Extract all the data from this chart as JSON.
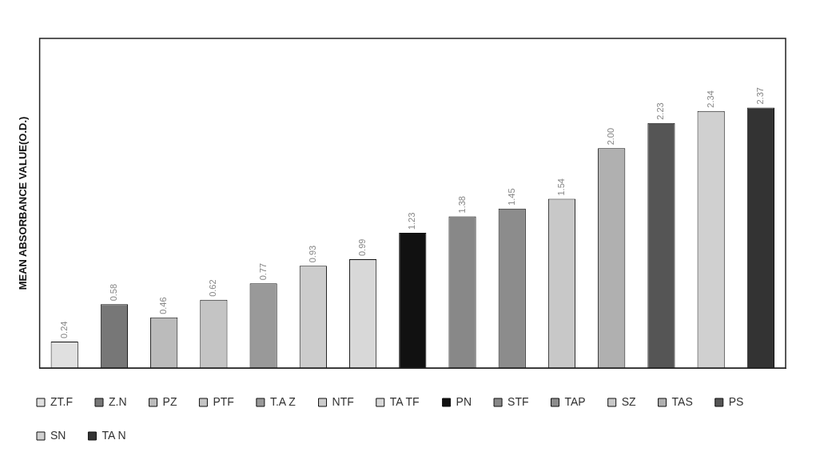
{
  "chart_data": {
    "type": "bar",
    "ylabel": "MEAN ABSORBANCE VALUE(O.D.)",
    "categories": [
      null,
      null,
      null,
      null,
      null,
      null,
      null,
      null,
      null,
      null,
      null,
      null,
      null,
      null,
      null
    ],
    "series": [
      {
        "name": "ZT.F",
        "color": "#e0e0e0",
        "values": [
          0.24,
          null,
          null,
          null,
          null,
          null,
          null,
          null,
          null,
          null,
          null,
          null,
          null,
          null,
          null
        ],
        "value_labels": [
          "0.24",
          null,
          null,
          null,
          null,
          null,
          null,
          null,
          null,
          null,
          null,
          null,
          null,
          null,
          null
        ]
      },
      {
        "name": "Z.N",
        "color": "#777777",
        "values": [
          null,
          0.58,
          null,
          null,
          null,
          null,
          null,
          null,
          null,
          null,
          null,
          null,
          null,
          null,
          null
        ],
        "value_labels": [
          null,
          "0.58",
          null,
          null,
          null,
          null,
          null,
          null,
          null,
          null,
          null,
          null,
          null,
          null,
          null
        ]
      },
      {
        "name": "PZ",
        "color": "#bbbbbb",
        "values": [
          null,
          null,
          0.46,
          null,
          null,
          null,
          null,
          null,
          null,
          null,
          null,
          null,
          null,
          null,
          null
        ],
        "value_labels": [
          null,
          null,
          "0.46",
          null,
          null,
          null,
          null,
          null,
          null,
          null,
          null,
          null,
          null,
          null,
          null
        ]
      },
      {
        "name": "PTF",
        "color": "#c4c4c4",
        "values": [
          null,
          null,
          null,
          0.62,
          null,
          null,
          null,
          null,
          null,
          null,
          null,
          null,
          null,
          null,
          null
        ],
        "value_labels": [
          null,
          null,
          null,
          "0.62",
          null,
          null,
          null,
          null,
          null,
          null,
          null,
          null,
          null,
          null,
          null
        ]
      },
      {
        "name": "T.A Z",
        "color": "#999999",
        "values": [
          null,
          null,
          null,
          null,
          0.77,
          null,
          null,
          null,
          null,
          null,
          null,
          null,
          null,
          null,
          null
        ],
        "value_labels": [
          null,
          null,
          null,
          null,
          "0.77",
          null,
          null,
          null,
          null,
          null,
          null,
          null,
          null,
          null,
          null
        ]
      },
      {
        "name": "NTF",
        "color": "#cccccc",
        "values": [
          null,
          null,
          null,
          null,
          null,
          0.93,
          null,
          null,
          null,
          null,
          null,
          null,
          null,
          null,
          null
        ],
        "value_labels": [
          null,
          null,
          null,
          null,
          null,
          "0.93",
          null,
          null,
          null,
          null,
          null,
          null,
          null,
          null,
          null
        ]
      },
      {
        "name": "TA TF",
        "color": "#d8d8d8",
        "values": [
          null,
          null,
          null,
          null,
          null,
          null,
          0.99,
          null,
          null,
          null,
          null,
          null,
          null,
          null,
          null
        ],
        "value_labels": [
          null,
          null,
          null,
          null,
          null,
          null,
          "0.99",
          null,
          null,
          null,
          null,
          null,
          null,
          null,
          null
        ]
      },
      {
        "name": "PN",
        "color": "#111111",
        "values": [
          null,
          null,
          null,
          null,
          null,
          null,
          null,
          1.23,
          null,
          null,
          null,
          null,
          null,
          null,
          null
        ],
        "value_labels": [
          null,
          null,
          null,
          null,
          null,
          null,
          null,
          "1.23",
          null,
          null,
          null,
          null,
          null,
          null,
          null
        ]
      },
      {
        "name": "STF",
        "color": "#888888",
        "values": [
          null,
          null,
          null,
          null,
          null,
          null,
          null,
          null,
          1.38,
          null,
          null,
          null,
          null,
          null,
          null
        ],
        "value_labels": [
          null,
          null,
          null,
          null,
          null,
          null,
          null,
          null,
          "1.38",
          null,
          null,
          null,
          null,
          null,
          null
        ]
      },
      {
        "name": "TAP",
        "color": "#8c8c8c",
        "values": [
          null,
          null,
          null,
          null,
          null,
          null,
          null,
          null,
          null,
          1.45,
          null,
          null,
          null,
          null,
          null
        ],
        "value_labels": [
          null,
          null,
          null,
          null,
          null,
          null,
          null,
          null,
          null,
          "1.45",
          null,
          null,
          null,
          null,
          null
        ]
      },
      {
        "name": "SZ",
        "color": "#c8c8c8",
        "values": [
          null,
          null,
          null,
          null,
          null,
          null,
          null,
          null,
          null,
          null,
          1.54,
          null,
          null,
          null,
          null
        ],
        "value_labels": [
          null,
          null,
          null,
          null,
          null,
          null,
          null,
          null,
          null,
          null,
          "1.54",
          null,
          null,
          null,
          null
        ]
      },
      {
        "name": "TAS",
        "color": "#b0b0b0",
        "values": [
          null,
          null,
          null,
          null,
          null,
          null,
          null,
          null,
          null,
          null,
          null,
          2.0,
          null,
          null,
          null
        ],
        "value_labels": [
          null,
          null,
          null,
          null,
          null,
          null,
          null,
          null,
          null,
          null,
          null,
          "2.00",
          null,
          null,
          null
        ]
      },
      {
        "name": "PS",
        "color": "#555555",
        "values": [
          null,
          null,
          null,
          null,
          null,
          null,
          null,
          null,
          null,
          null,
          null,
          null,
          2.23,
          null,
          null
        ],
        "value_labels": [
          null,
          null,
          null,
          null,
          null,
          null,
          null,
          null,
          null,
          null,
          null,
          null,
          "2.23",
          null,
          null
        ]
      },
      {
        "name": "SN",
        "color": "#d0d0d0",
        "values": [
          null,
          null,
          null,
          null,
          null,
          null,
          null,
          null,
          null,
          null,
          null,
          null,
          null,
          2.34,
          null
        ],
        "value_labels": [
          null,
          null,
          null,
          null,
          null,
          null,
          null,
          null,
          null,
          null,
          null,
          null,
          null,
          "2.34",
          null
        ]
      },
      {
        "name": "TA N",
        "color": "#333333",
        "values": [
          null,
          null,
          null,
          null,
          null,
          null,
          null,
          null,
          null,
          null,
          null,
          null,
          null,
          null,
          2.37
        ],
        "value_labels": [
          null,
          null,
          null,
          null,
          null,
          null,
          null,
          null,
          null,
          null,
          null,
          null,
          null,
          null,
          "2.37"
        ]
      }
    ],
    "stacked": true,
    "legend": "bottom",
    "grid": false
  }
}
